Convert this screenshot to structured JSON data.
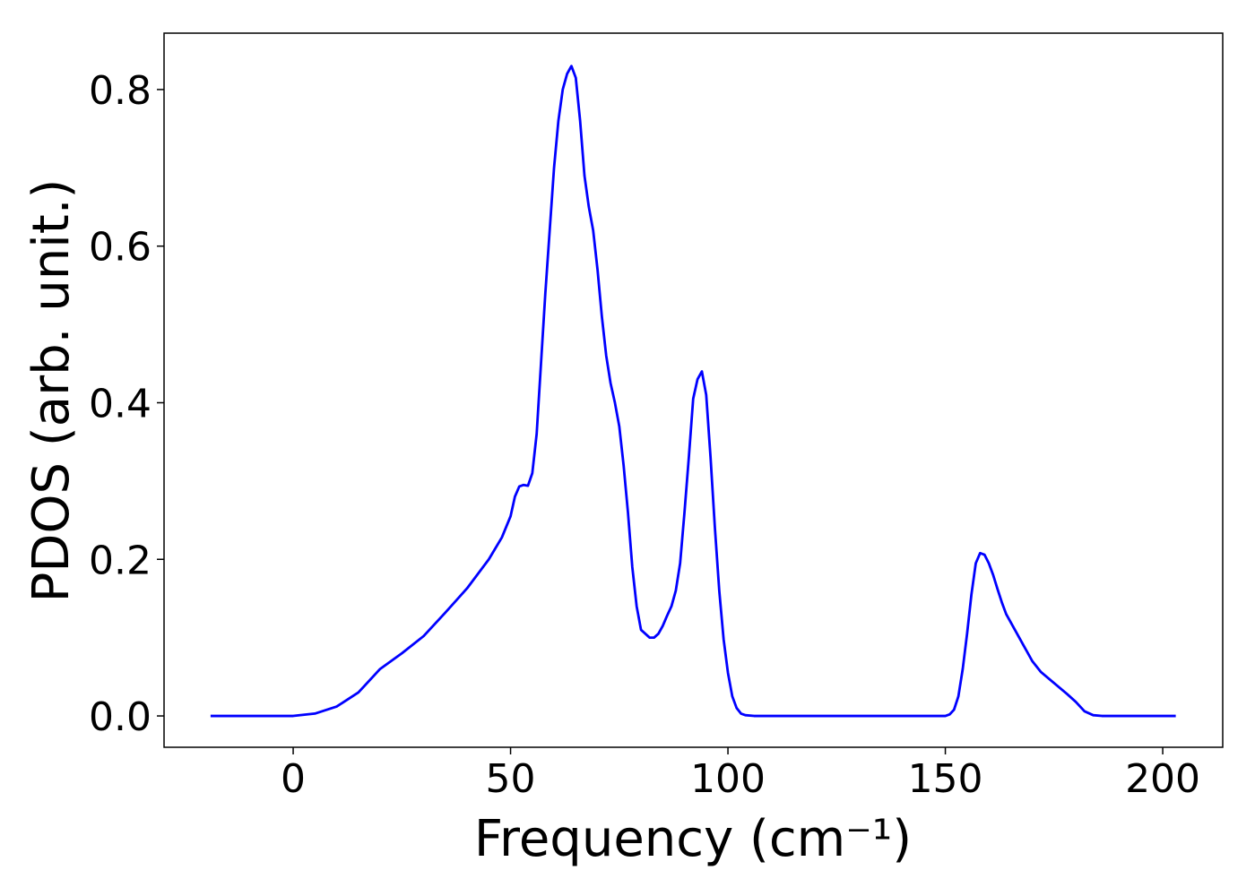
{
  "chart_data": {
    "type": "line",
    "xlabel": "Frequency (cm⁻¹)",
    "ylabel": "PDOS (arb. unit.)",
    "xlim": [
      -29.7,
      213.8
    ],
    "ylim": [
      -0.04,
      0.872
    ],
    "xticks": [
      0,
      50,
      100,
      150,
      200
    ],
    "yticks": [
      {
        "value": 0,
        "label": "0.0"
      },
      0.2,
      0.4,
      0.6,
      0.8
    ],
    "grid": false,
    "series": [
      {
        "name": "PDOS",
        "color": "#0000ff",
        "x": [
          -19,
          0,
          5,
          10,
          15,
          20,
          25,
          30,
          35,
          40,
          45,
          48,
          50,
          51,
          52,
          53,
          54,
          55,
          56,
          57,
          58,
          59,
          60,
          61,
          62,
          63,
          64,
          65,
          66,
          67,
          68,
          69,
          70,
          71,
          72,
          73,
          74,
          75,
          76,
          77,
          78,
          79,
          80,
          81,
          82,
          83,
          84,
          85,
          86,
          87,
          88,
          89,
          90,
          91,
          92,
          93,
          94,
          95,
          96,
          97,
          98,
          99,
          100,
          101,
          102,
          103,
          104,
          106,
          150,
          151,
          152,
          153,
          154,
          155,
          156,
          157,
          158,
          159,
          160,
          161,
          162,
          163,
          164,
          166,
          168,
          170,
          172,
          175,
          178,
          180,
          182,
          184,
          186,
          203
        ],
        "values": [
          0,
          0,
          0.003,
          0.012,
          0.03,
          0.06,
          0.08,
          0.102,
          0.132,
          0.163,
          0.2,
          0.228,
          0.255,
          0.28,
          0.293,
          0.295,
          0.294,
          0.31,
          0.36,
          0.45,
          0.54,
          0.62,
          0.7,
          0.76,
          0.8,
          0.82,
          0.83,
          0.815,
          0.76,
          0.69,
          0.65,
          0.62,
          0.57,
          0.51,
          0.46,
          0.425,
          0.4,
          0.37,
          0.32,
          0.26,
          0.19,
          0.14,
          0.11,
          0.105,
          0.1,
          0.1,
          0.105,
          0.115,
          0.128,
          0.14,
          0.16,
          0.195,
          0.26,
          0.33,
          0.405,
          0.43,
          0.44,
          0.41,
          0.33,
          0.24,
          0.16,
          0.098,
          0.055,
          0.025,
          0.01,
          0.003,
          0.001,
          0,
          0,
          0.002,
          0.008,
          0.025,
          0.06,
          0.105,
          0.155,
          0.195,
          0.208,
          0.206,
          0.195,
          0.18,
          0.162,
          0.145,
          0.13,
          0.11,
          0.09,
          0.07,
          0.056,
          0.042,
          0.028,
          0.018,
          0.006,
          0.001,
          0,
          0
        ]
      }
    ]
  }
}
